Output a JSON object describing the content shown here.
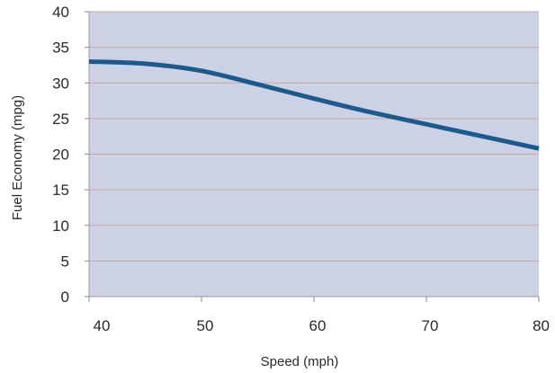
{
  "chart_data": {
    "type": "line",
    "title": "",
    "xlabel": "Speed (mph)",
    "ylabel": "Fuel Economy (mpg)",
    "xlim": [
      40,
      80
    ],
    "ylim": [
      0,
      40
    ],
    "x_ticks": [
      "40",
      "50",
      "60",
      "70",
      "80"
    ],
    "y_ticks": [
      "0",
      "5",
      "10",
      "15",
      "20",
      "25",
      "30",
      "35",
      "40"
    ],
    "grid": true,
    "legend": "none",
    "plot_background": "#ccd1e6",
    "gridline_color": "#c9a7a1",
    "line_color": "#1d5a8c",
    "series": [
      {
        "x": [
          40,
          45,
          50,
          55,
          60,
          65,
          70,
          75,
          80
        ],
        "y": [
          33,
          32.7,
          31.7,
          29.8,
          27.8,
          25.9,
          24.2,
          22.5,
          20.8
        ]
      }
    ]
  }
}
